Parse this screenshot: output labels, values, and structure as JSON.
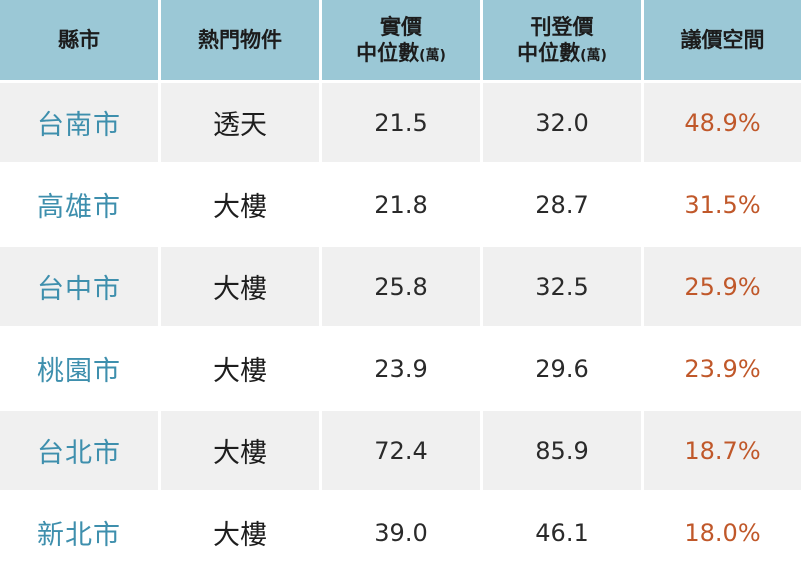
{
  "header": {
    "county": "縣市",
    "hot_property": "熱門物件",
    "actual_price_line1": "實價",
    "actual_price_line2": "中位數",
    "actual_price_unit": "(萬)",
    "listed_price_line1": "刊登價",
    "listed_price_line2": "中位數",
    "listed_price_unit": "(萬)",
    "bargain_space": "議價空間"
  },
  "rows": [
    {
      "county": "台南市",
      "type": "透天",
      "actual": "21.5",
      "listed": "32.0",
      "bargain": "48.9%"
    },
    {
      "county": "高雄市",
      "type": "大樓",
      "actual": "21.8",
      "listed": "28.7",
      "bargain": "31.5%"
    },
    {
      "county": "台中市",
      "type": "大樓",
      "actual": "25.8",
      "listed": "32.5",
      "bargain": "25.9%"
    },
    {
      "county": "桃園市",
      "type": "大樓",
      "actual": "23.9",
      "listed": "29.6",
      "bargain": "23.9%"
    },
    {
      "county": "台北市",
      "type": "大樓",
      "actual": "72.4",
      "listed": "85.9",
      "bargain": "18.7%"
    },
    {
      "county": "新北市",
      "type": "大樓",
      "actual": "39.0",
      "listed": "46.1",
      "bargain": "18.0%"
    }
  ],
  "colors": {
    "header_bg": "#9bc8d6",
    "county_text": "#3e8fad",
    "bargain_text": "#c0582a",
    "row_shaded": "#f0f0f0"
  }
}
